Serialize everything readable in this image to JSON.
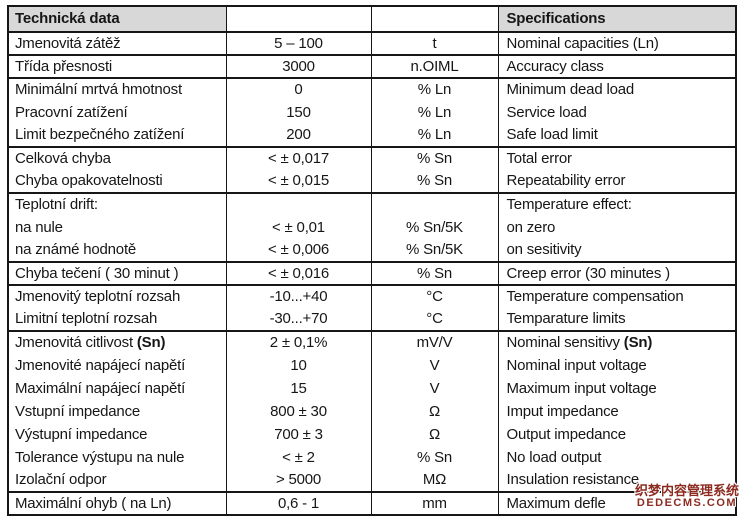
{
  "colors": {
    "header_bg": "#d8d8d8",
    "border": "#161616",
    "text": "#161616",
    "watermark_red": "#8c2b20"
  },
  "table": {
    "header": {
      "col1": "Technická data",
      "col2": "",
      "col3": "",
      "col4": "Specifications"
    },
    "rows": [
      {
        "label": "Jmenovitá zátěž",
        "value": "5 – 100",
        "unit": "t",
        "spec": "Nominal capacities (Ln)",
        "sep": false
      },
      {
        "label": "Třída přesnosti",
        "value": "3000",
        "unit": "n.OIML",
        "spec": "Accuracy class",
        "sep": true
      },
      {
        "label": "Minimální mrtvá hmotnost",
        "value": "0",
        "unit": "% Ln",
        "spec": "Minimum dead load",
        "sep": true
      },
      {
        "label": "Pracovní zatížení",
        "value": "150",
        "unit": "% Ln",
        "spec": "Service load",
        "sep": false
      },
      {
        "label": "Limit bezpečného zatížení",
        "value": "200",
        "unit": "% Ln",
        "spec": "Safe load limit",
        "sep": false
      },
      {
        "label": "Celková chyba",
        "value": "< ± 0,017",
        "unit": "% Sn",
        "spec": "Total error",
        "sep": true
      },
      {
        "label": "Chyba opakovatelnosti",
        "value": "< ± 0,015",
        "unit": "% Sn",
        "spec": "Repeatability error",
        "sep": false
      },
      {
        "label": "Teplotní drift:",
        "value": "",
        "unit": "",
        "spec": "Temperature effect:",
        "sep": true
      },
      {
        "label": "na nule",
        "value": "< ± 0,01",
        "unit": "% Sn/5K",
        "spec": "on zero",
        "sep": false
      },
      {
        "label": "na známé hodnotě",
        "value": "< ± 0,006",
        "unit": "% Sn/5K",
        "spec": "on sesitivity",
        "sep": false
      },
      {
        "label": "Chyba tečení ( 30 minut )",
        "value": "< ± 0,016",
        "unit": "% Sn",
        "spec": "Creep error (30 minutes )",
        "sep": true
      },
      {
        "label": "Jmenovitý teplotní rozsah",
        "value": "-10...+40",
        "unit": "°C",
        "spec": "Temperature compensation",
        "sep": true
      },
      {
        "label": "Limitní teplotní rozsah",
        "value": "-30...+70",
        "unit": "°C",
        "spec": "Temparature limits",
        "sep": false
      },
      {
        "label": "Jmenovitá citlivost ",
        "label_bold": "(Sn)",
        "value": "2 ± 0,1%",
        "unit": "mV/V",
        "spec": "Nominal sensitivy ",
        "spec_bold": "(Sn)",
        "sep": true
      },
      {
        "label": "Jmenovité napájecí napětí",
        "value": "10",
        "unit": "V",
        "spec": "Nominal input voltage",
        "sep": false
      },
      {
        "label": "Maximální napájecí napětí",
        "value": "15",
        "unit": "V",
        "spec": "Maximum input voltage",
        "sep": false
      },
      {
        "label": "Vstupní impedance",
        "value": "800 ± 30",
        "unit": "Ω",
        "spec": "Imput impedance",
        "sep": false
      },
      {
        "label": "Výstupní impedance",
        "value": "700 ± 3",
        "unit": "Ω",
        "spec": "Output impedance",
        "sep": false
      },
      {
        "label": "Tolerance výstupu na nule",
        "value": "< ± 2",
        "unit": "% Sn",
        "spec": "No load output",
        "sep": false
      },
      {
        "label": "Izolační odpor",
        "value": "> 5000",
        "unit": "MΩ",
        "spec": "Insulation resistance",
        "sep": false
      },
      {
        "label": "Maximální ohyb ( na Ln)",
        "value": "0,6 - 1",
        "unit": "mm",
        "spec": "Maximum defle",
        "sep": true
      }
    ]
  },
  "watermark": {
    "line1": "织梦内容管理系统",
    "line2": "DEDECMS.COM"
  }
}
